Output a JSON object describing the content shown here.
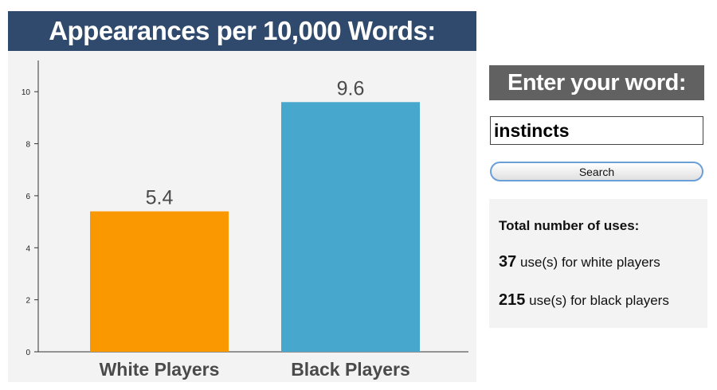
{
  "chart_panel": {
    "title": "Appearances per 10,000 Words:"
  },
  "chart_data": {
    "type": "bar",
    "categories": [
      "White Players",
      "Black Players"
    ],
    "values": [
      5.4,
      9.6
    ],
    "value_labels": [
      "5.4",
      "9.6"
    ],
    "colors": [
      "#f99800",
      "#47a7cc"
    ],
    "y_ticks": [
      0,
      2,
      4,
      6,
      8,
      10
    ],
    "ylim": [
      0,
      11.2
    ],
    "grid": false
  },
  "search": {
    "header": "Enter your word:",
    "input_value": "instincts",
    "button_label": "Search"
  },
  "totals": {
    "heading": "Total number of uses:",
    "white": {
      "count": "37",
      "text": "use(s) for white players"
    },
    "black": {
      "count": "215",
      "text": "use(s) for black players"
    }
  }
}
